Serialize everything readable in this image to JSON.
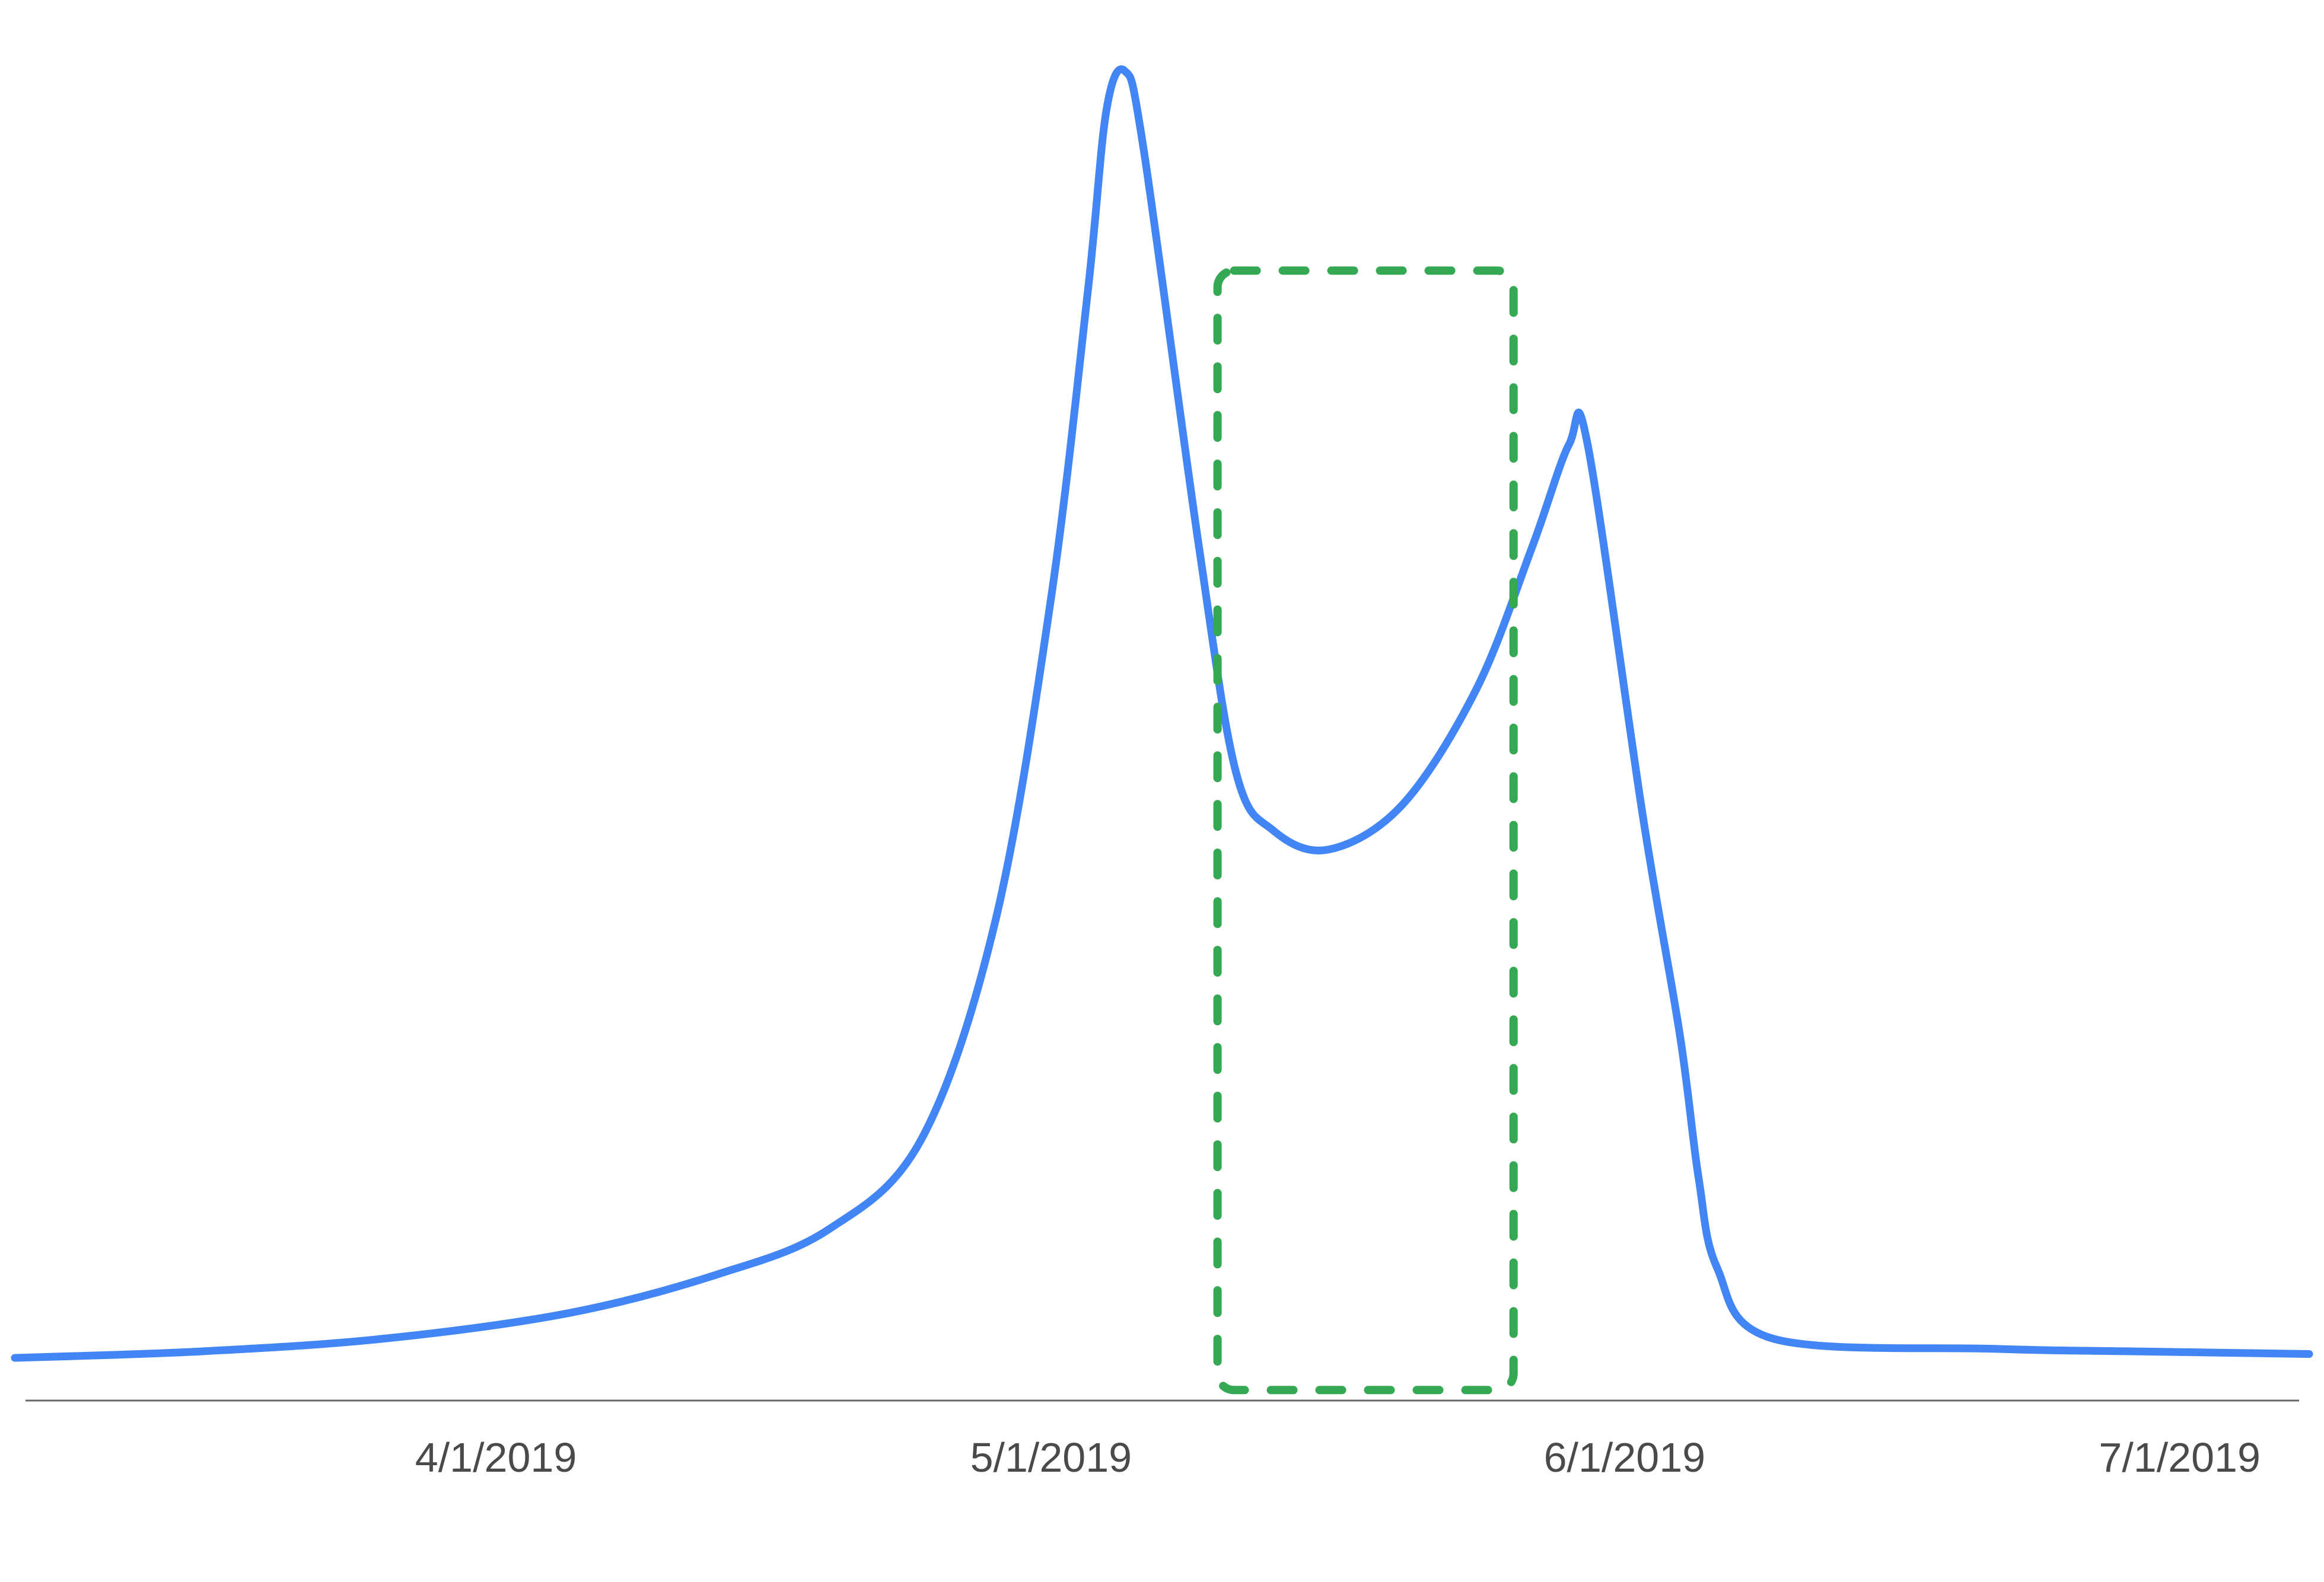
{
  "chart_data": {
    "type": "line",
    "xlabel": "",
    "ylabel": "",
    "grid": false,
    "legend": "none",
    "xlim": [
      "2019-03-06",
      "2019-07-08"
    ],
    "y_axis_visible": false,
    "ylim": [
      0,
      100
    ],
    "x_ticks": [
      {
        "date": "2019-04-01",
        "label": "4/1/2019"
      },
      {
        "date": "2019-05-01",
        "label": "5/1/2019"
      },
      {
        "date": "2019-06-01",
        "label": "6/1/2019"
      },
      {
        "date": "2019-07-01",
        "label": "7/1/2019"
      }
    ],
    "series": [
      {
        "color": "#4285f4",
        "points": [
          {
            "x": "2019-03-06",
            "y": 0.0
          },
          {
            "x": "2019-03-16",
            "y": 0.5
          },
          {
            "x": "2019-03-26",
            "y": 1.5
          },
          {
            "x": "2019-04-05",
            "y": 3.5
          },
          {
            "x": "2019-04-13",
            "y": 6.5
          },
          {
            "x": "2019-04-19",
            "y": 10.0
          },
          {
            "x": "2019-04-24",
            "y": 17.0
          },
          {
            "x": "2019-04-28",
            "y": 34.0
          },
          {
            "x": "2019-05-01",
            "y": 59.0
          },
          {
            "x": "2019-05-03",
            "y": 83.0
          },
          {
            "x": "2019-05-04",
            "y": 97.0
          },
          {
            "x": "2019-05-05",
            "y": 100.0
          },
          {
            "x": "2019-05-06",
            "y": 94.0
          },
          {
            "x": "2019-05-09",
            "y": 63.0
          },
          {
            "x": "2019-05-11",
            "y": 45.5
          },
          {
            "x": "2019-05-13",
            "y": 41.0
          },
          {
            "x": "2019-05-16",
            "y": 39.5
          },
          {
            "x": "2019-05-20",
            "y": 43.0
          },
          {
            "x": "2019-05-24",
            "y": 52.0
          },
          {
            "x": "2019-05-27",
            "y": 63.0
          },
          {
            "x": "2019-05-29",
            "y": 71.0
          },
          {
            "x": "2019-05-30",
            "y": 71.0
          },
          {
            "x": "2019-06-02",
            "y": 42.0
          },
          {
            "x": "2019-06-04",
            "y": 25.0
          },
          {
            "x": "2019-06-05",
            "y": 14.0
          },
          {
            "x": "2019-06-06",
            "y": 7.0
          },
          {
            "x": "2019-06-09",
            "y": 1.5
          },
          {
            "x": "2019-06-21",
            "y": 0.7
          },
          {
            "x": "2019-06-29",
            "y": 0.5
          },
          {
            "x": "2019-07-08",
            "y": 0.3
          }
        ]
      }
    ],
    "annotations": [
      {
        "type": "highlight-box",
        "style": "dashed",
        "color": "#34a853",
        "x_start": "2019-05-10",
        "x_end": "2019-05-26",
        "y_start": -2.5,
        "y_end": 84.5
      }
    ]
  }
}
